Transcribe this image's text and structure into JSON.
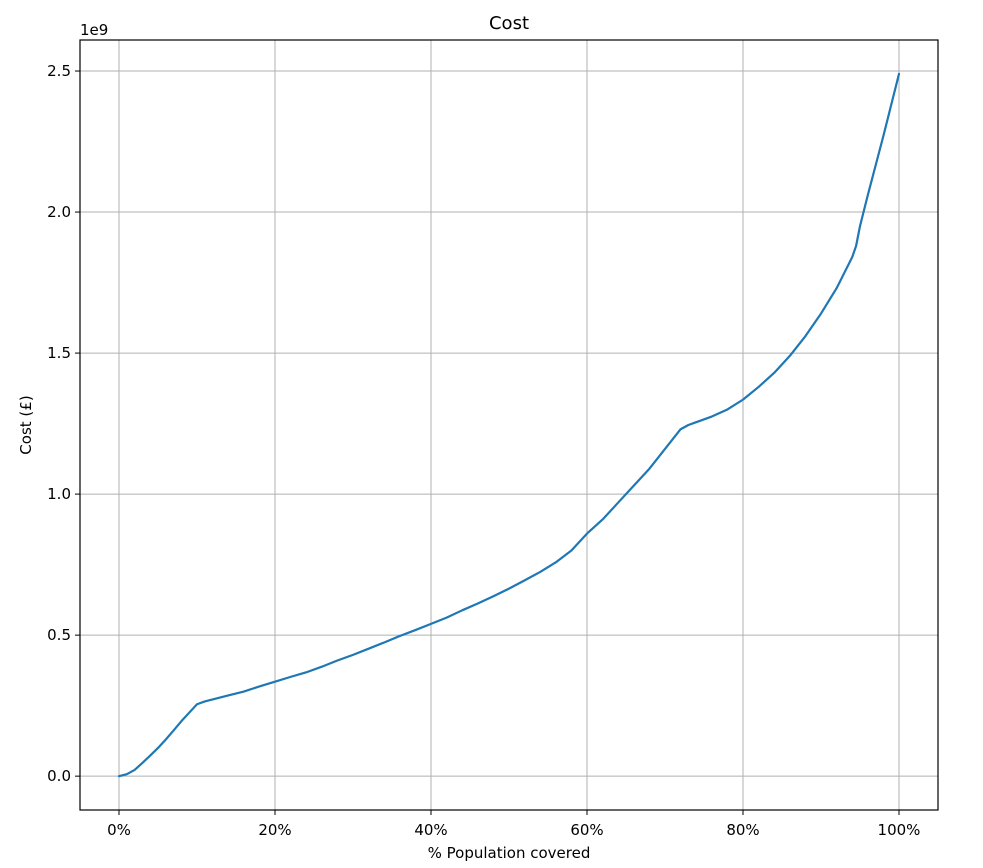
{
  "chart_data": {
    "type": "line",
    "title": "Cost",
    "xlabel": "% Population covered",
    "ylabel": "Cost (£)",
    "y_offset_label": "1e9",
    "xlim": [
      -5,
      105
    ],
    "ylim": [
      -0.12,
      2.61
    ],
    "x_ticks": [
      0,
      20,
      40,
      60,
      80,
      100
    ],
    "x_tick_labels": [
      "0%",
      "20%",
      "40%",
      "60%",
      "80%",
      "100%"
    ],
    "y_ticks": [
      0.0,
      0.5,
      1.0,
      1.5,
      2.0,
      2.5
    ],
    "y_tick_labels": [
      "0.0",
      "0.5",
      "1.0",
      "1.5",
      "2.0",
      "2.5"
    ],
    "grid": true,
    "series": [
      {
        "color": "#1f77b4",
        "x": [
          0,
          1,
          2,
          3,
          4,
          5,
          6,
          7,
          8,
          9,
          10,
          11,
          12,
          14,
          16,
          18,
          20,
          22,
          24,
          26,
          28,
          30,
          32,
          34,
          36,
          38,
          40,
          42,
          44,
          46,
          48,
          50,
          52,
          54,
          56,
          58,
          60,
          62,
          64,
          66,
          68,
          70,
          72,
          73,
          74,
          76,
          78,
          80,
          82,
          84,
          86,
          88,
          90,
          92,
          93,
          94,
          94.5,
          95,
          96,
          98,
          100
        ],
        "y": [
          0.0,
          0.007,
          0.022,
          0.047,
          0.073,
          0.1,
          0.13,
          0.162,
          0.195,
          0.225,
          0.255,
          0.265,
          0.272,
          0.286,
          0.3,
          0.318,
          0.335,
          0.352,
          0.368,
          0.388,
          0.41,
          0.43,
          0.452,
          0.474,
          0.497,
          0.518,
          0.54,
          0.562,
          0.588,
          0.612,
          0.638,
          0.665,
          0.694,
          0.724,
          0.758,
          0.8,
          0.86,
          0.91,
          0.97,
          1.03,
          1.09,
          1.16,
          1.23,
          1.245,
          1.255,
          1.275,
          1.3,
          1.335,
          1.38,
          1.43,
          1.49,
          1.56,
          1.64,
          1.73,
          1.785,
          1.84,
          1.88,
          1.95,
          2.06,
          2.27,
          2.49
        ]
      }
    ]
  }
}
